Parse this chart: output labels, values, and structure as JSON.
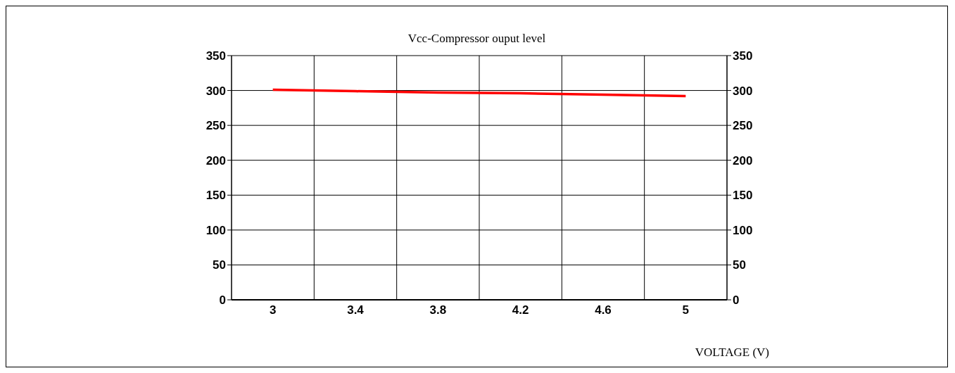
{
  "chart_data": {
    "type": "line",
    "title": "Vcc-Compressor ouput level",
    "xlabel": "VOLTAGE (V)",
    "categories": [
      "3",
      "3.4",
      "3.8",
      "4.2",
      "4.6",
      "5"
    ],
    "series": [
      {
        "color": "#ff0000",
        "values": [
          301,
          299,
          297,
          296,
          294,
          292
        ]
      }
    ],
    "ylim": [
      0,
      350
    ],
    "yticks": [
      0,
      50,
      100,
      150,
      200,
      250,
      300,
      350
    ],
    "y2lim": [
      0,
      350
    ],
    "y2ticks": [
      0,
      50,
      100,
      150,
      200,
      250,
      300,
      350
    ],
    "grid": true,
    "marker": "none",
    "line_style": "solid"
  }
}
